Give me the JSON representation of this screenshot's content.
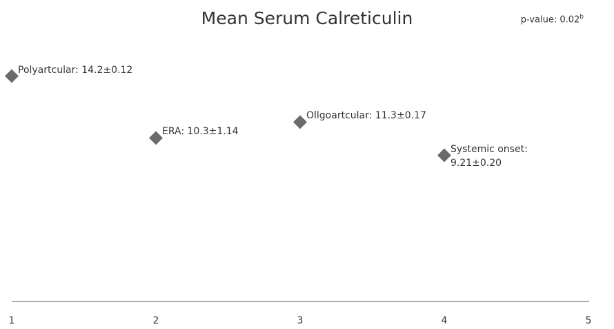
{
  "chart_data": {
    "type": "scatter",
    "title": "Mean Serum Calreticulin",
    "annotation": "p-value: 0.02",
    "annotation_superscript": "b",
    "x": [
      1,
      2,
      3,
      4
    ],
    "values": [
      14.2,
      10.3,
      11.3,
      9.21
    ],
    "value_labels": [
      "Polyartcular: 14.2±0.12",
      "ERA: 10.3±1.14",
      "Ollgoartcular: 11.3±0.17",
      "Systemic onset:\n9.21±0.20"
    ],
    "color": "#6b6b6b",
    "xlim": [
      1,
      5
    ],
    "xticks": [
      1,
      2,
      3,
      4,
      5
    ],
    "ylim": [
      0,
      16
    ]
  }
}
